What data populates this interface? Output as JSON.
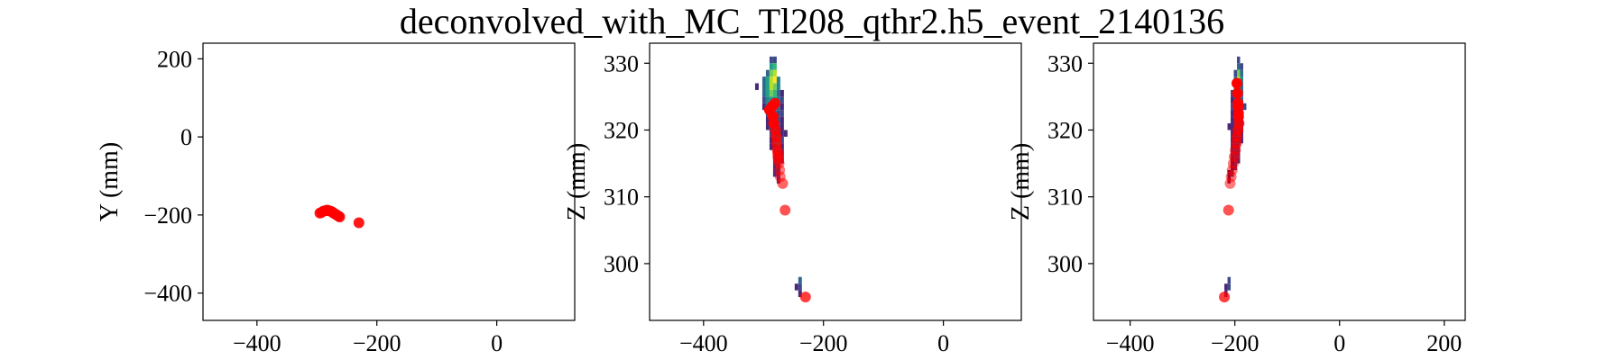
{
  "figure": {
    "title": "deconvolved_with_MC_Tl208_qthr2.h5_event_2140136"
  },
  "chart_data": [
    {
      "type": "scatter",
      "panel": "XY",
      "xlabel": "",
      "ylabel": "Y (mm)",
      "xlim": [
        -490,
        130
      ],
      "ylim": [
        -470,
        240
      ],
      "xticks": [
        -400,
        -200,
        0
      ],
      "yticks": [
        -400,
        -200,
        0,
        200
      ],
      "series": [
        {
          "color": "#ff0000",
          "x": [
            -295,
            -292,
            -289,
            -286,
            -284,
            -282,
            -280,
            -278,
            -276,
            -274,
            -272,
            -270,
            -268,
            -266,
            -264,
            -262,
            -230
          ],
          "y": [
            -195,
            -193,
            -190,
            -189,
            -188,
            -188,
            -189,
            -190,
            -191,
            -193,
            -195,
            -197,
            -199,
            -201,
            -203,
            -205,
            -220
          ]
        }
      ]
    },
    {
      "type": "heatmap",
      "panel": "XZ",
      "xlabel": "",
      "ylabel": "Z (mm)",
      "xlim": [
        -490,
        130
      ],
      "ylim": [
        291.5,
        333
      ],
      "xticks": [
        -400,
        -200,
        0
      ],
      "yticks": [
        300,
        310,
        320,
        330
      ],
      "cells": [
        {
          "x": -287,
          "z": 330.5,
          "v": 0.25
        },
        {
          "x": -281,
          "z": 330.5,
          "v": 0.2
        },
        {
          "x": -287,
          "z": 329.5,
          "v": 0.5
        },
        {
          "x": -281,
          "z": 329.5,
          "v": 0.7
        },
        {
          "x": -293,
          "z": 328.5,
          "v": 0.35
        },
        {
          "x": -287,
          "z": 328.5,
          "v": 0.75
        },
        {
          "x": -281,
          "z": 328.5,
          "v": 0.9
        },
        {
          "x": -299,
          "z": 327.5,
          "v": 0.3
        },
        {
          "x": -293,
          "z": 327.5,
          "v": 0.55
        },
        {
          "x": -287,
          "z": 327.5,
          "v": 0.85
        },
        {
          "x": -281,
          "z": 327.5,
          "v": 0.95
        },
        {
          "x": -275,
          "z": 327.5,
          "v": 0.4
        },
        {
          "x": -311,
          "z": 326.5,
          "v": 0.1
        },
        {
          "x": -299,
          "z": 326.5,
          "v": 0.35
        },
        {
          "x": -293,
          "z": 326.5,
          "v": 0.6
        },
        {
          "x": -287,
          "z": 326.5,
          "v": 0.9
        },
        {
          "x": -281,
          "z": 326.5,
          "v": 0.8
        },
        {
          "x": -275,
          "z": 326.5,
          "v": 0.45
        },
        {
          "x": -299,
          "z": 325.5,
          "v": 0.3
        },
        {
          "x": -293,
          "z": 325.5,
          "v": 0.5
        },
        {
          "x": -287,
          "z": 325.5,
          "v": 0.75
        },
        {
          "x": -281,
          "z": 325.5,
          "v": 0.65
        },
        {
          "x": -275,
          "z": 325.5,
          "v": 0.35
        },
        {
          "x": -269,
          "z": 325.5,
          "v": 0.15
        },
        {
          "x": -299,
          "z": 324.5,
          "v": 0.25
        },
        {
          "x": -293,
          "z": 324.5,
          "v": 0.4
        },
        {
          "x": -287,
          "z": 324.5,
          "v": 0.55
        },
        {
          "x": -281,
          "z": 324.5,
          "v": 0.5
        },
        {
          "x": -275,
          "z": 324.5,
          "v": 0.3
        },
        {
          "x": -269,
          "z": 324.5,
          "v": 0.2
        },
        {
          "x": -299,
          "z": 323.5,
          "v": 0.15
        },
        {
          "x": -293,
          "z": 323.5,
          "v": 0.35
        },
        {
          "x": -287,
          "z": 323.5,
          "v": 0.45
        },
        {
          "x": -281,
          "z": 323.5,
          "v": 0.4
        },
        {
          "x": -275,
          "z": 323.5,
          "v": 0.3
        },
        {
          "x": -269,
          "z": 323.5,
          "v": 0.15
        },
        {
          "x": -293,
          "z": 322.5,
          "v": 0.25
        },
        {
          "x": -287,
          "z": 322.5,
          "v": 0.4
        },
        {
          "x": -281,
          "z": 322.5,
          "v": 0.35
        },
        {
          "x": -275,
          "z": 322.5,
          "v": 0.25
        },
        {
          "x": -269,
          "z": 322.5,
          "v": 0.2
        },
        {
          "x": -293,
          "z": 321.5,
          "v": 0.15
        },
        {
          "x": -287,
          "z": 321.5,
          "v": 0.3
        },
        {
          "x": -281,
          "z": 321.5,
          "v": 0.35
        },
        {
          "x": -275,
          "z": 321.5,
          "v": 0.25
        },
        {
          "x": -269,
          "z": 321.5,
          "v": 0.1
        },
        {
          "x": -293,
          "z": 320.5,
          "v": 0.1
        },
        {
          "x": -287,
          "z": 320.5,
          "v": 0.25
        },
        {
          "x": -281,
          "z": 320.5,
          "v": 0.3
        },
        {
          "x": -275,
          "z": 320.5,
          "v": 0.2
        },
        {
          "x": -269,
          "z": 320.5,
          "v": 0.15
        },
        {
          "x": -287,
          "z": 319.5,
          "v": 0.2
        },
        {
          "x": -281,
          "z": 319.5,
          "v": 0.35
        },
        {
          "x": -275,
          "z": 319.5,
          "v": 0.25
        },
        {
          "x": -269,
          "z": 319.5,
          "v": 0.1
        },
        {
          "x": -263,
          "z": 319.5,
          "v": 0.15
        },
        {
          "x": -287,
          "z": 318.5,
          "v": 0.15
        },
        {
          "x": -281,
          "z": 318.5,
          "v": 0.3
        },
        {
          "x": -275,
          "z": 318.5,
          "v": 0.45
        },
        {
          "x": -269,
          "z": 318.5,
          "v": 0.2
        },
        {
          "x": -287,
          "z": 317.5,
          "v": 0.1
        },
        {
          "x": -281,
          "z": 317.5,
          "v": 0.25
        },
        {
          "x": -275,
          "z": 317.5,
          "v": 0.4
        },
        {
          "x": -269,
          "z": 317.5,
          "v": 0.15
        },
        {
          "x": -281,
          "z": 316.5,
          "v": 0.2
        },
        {
          "x": -275,
          "z": 316.5,
          "v": 0.3
        },
        {
          "x": -269,
          "z": 316.5,
          "v": 0.1
        },
        {
          "x": -281,
          "z": 315.5,
          "v": 0.15
        },
        {
          "x": -275,
          "z": 315.5,
          "v": 0.2
        },
        {
          "x": -269,
          "z": 315.5,
          "v": 0.1
        },
        {
          "x": -281,
          "z": 314.5,
          "v": 0.1
        },
        {
          "x": -275,
          "z": 314.5,
          "v": 0.15
        },
        {
          "x": -281,
          "z": 313.5,
          "v": 0.1
        },
        {
          "x": -275,
          "z": 313.5,
          "v": 0.1
        },
        {
          "x": -275,
          "z": 312.5,
          "v": 0.08
        },
        {
          "x": -239,
          "z": 297.5,
          "v": 0.3
        },
        {
          "x": -239,
          "z": 296.5,
          "v": 0.2
        },
        {
          "x": -245,
          "z": 296.5,
          "v": 0.15
        },
        {
          "x": -239,
          "z": 295.5,
          "v": 0.1
        }
      ],
      "points": {
        "color": "#ff0000",
        "x": [
          -290,
          -286,
          -284,
          -283,
          -281,
          -280,
          -279,
          -278,
          -277,
          -276,
          -276,
          -275,
          -274,
          -273,
          -272,
          -268,
          -264,
          -230
        ],
        "z": [
          323.0,
          323.5,
          322.0,
          321.0,
          324.0,
          320.0,
          319.0,
          318.0,
          317.0,
          316.5,
          316.0,
          315.5,
          315.0,
          314.0,
          313.0,
          312.0,
          308.0,
          295.0
        ],
        "size": [
          1,
          1,
          1,
          1,
          0.9,
          0.8,
          0.8,
          0.7,
          0.6,
          0.6,
          0.5,
          0.5,
          0.4,
          0.4,
          0.4,
          0.5,
          0.6,
          0.7
        ]
      }
    },
    {
      "type": "heatmap",
      "panel": "YZ",
      "xlabel": "",
      "ylabel": "Z (mm)",
      "xlim": [
        -470,
        240
      ],
      "ylim": [
        291.5,
        333
      ],
      "xticks": [
        -400,
        -200,
        0,
        200
      ],
      "yticks": [
        300,
        310,
        320,
        330
      ],
      "cells": [
        {
          "x": -193,
          "z": 330.5,
          "v": 0.25
        },
        {
          "x": -193,
          "z": 329.5,
          "v": 0.3
        },
        {
          "x": -187,
          "z": 329.5,
          "v": 0.2
        },
        {
          "x": -199,
          "z": 328.5,
          "v": 0.25
        },
        {
          "x": -193,
          "z": 328.5,
          "v": 0.75
        },
        {
          "x": -187,
          "z": 328.5,
          "v": 0.3
        },
        {
          "x": -199,
          "z": 327.5,
          "v": 0.3
        },
        {
          "x": -193,
          "z": 327.5,
          "v": 0.85
        },
        {
          "x": -187,
          "z": 327.5,
          "v": 0.45
        },
        {
          "x": -199,
          "z": 326.5,
          "v": 0.35
        },
        {
          "x": -193,
          "z": 326.5,
          "v": 0.7
        },
        {
          "x": -187,
          "z": 326.5,
          "v": 0.35
        },
        {
          "x": -205,
          "z": 325.5,
          "v": 0.2
        },
        {
          "x": -199,
          "z": 325.5,
          "v": 0.4
        },
        {
          "x": -193,
          "z": 325.5,
          "v": 0.55
        },
        {
          "x": -187,
          "z": 325.5,
          "v": 0.3
        },
        {
          "x": -205,
          "z": 324.5,
          "v": 0.15
        },
        {
          "x": -199,
          "z": 324.5,
          "v": 0.35
        },
        {
          "x": -193,
          "z": 324.5,
          "v": 0.45
        },
        {
          "x": -187,
          "z": 324.5,
          "v": 0.3
        },
        {
          "x": -205,
          "z": 323.5,
          "v": 0.2
        },
        {
          "x": -199,
          "z": 323.5,
          "v": 0.3
        },
        {
          "x": -193,
          "z": 323.5,
          "v": 0.35
        },
        {
          "x": -187,
          "z": 323.5,
          "v": 0.25
        },
        {
          "x": -181,
          "z": 323.5,
          "v": 0.2
        },
        {
          "x": -205,
          "z": 322.5,
          "v": 0.15
        },
        {
          "x": -199,
          "z": 322.5,
          "v": 0.25
        },
        {
          "x": -193,
          "z": 322.5,
          "v": 0.3
        },
        {
          "x": -187,
          "z": 322.5,
          "v": 0.2
        },
        {
          "x": -205,
          "z": 321.5,
          "v": 0.1
        },
        {
          "x": -199,
          "z": 321.5,
          "v": 0.2
        },
        {
          "x": -193,
          "z": 321.5,
          "v": 0.25
        },
        {
          "x": -187,
          "z": 321.5,
          "v": 0.15
        },
        {
          "x": -211,
          "z": 320.5,
          "v": 0.1
        },
        {
          "x": -205,
          "z": 320.5,
          "v": 0.15
        },
        {
          "x": -199,
          "z": 320.5,
          "v": 0.2
        },
        {
          "x": -193,
          "z": 320.5,
          "v": 0.2
        },
        {
          "x": -187,
          "z": 320.5,
          "v": 0.1
        },
        {
          "x": -205,
          "z": 319.5,
          "v": 0.1
        },
        {
          "x": -199,
          "z": 319.5,
          "v": 0.15
        },
        {
          "x": -193,
          "z": 319.5,
          "v": 0.2
        },
        {
          "x": -187,
          "z": 319.5,
          "v": 0.15
        },
        {
          "x": -205,
          "z": 318.5,
          "v": 0.08
        },
        {
          "x": -199,
          "z": 318.5,
          "v": 0.12
        },
        {
          "x": -193,
          "z": 318.5,
          "v": 0.15
        },
        {
          "x": -187,
          "z": 318.5,
          "v": 0.1
        },
        {
          "x": -205,
          "z": 317.5,
          "v": 0.08
        },
        {
          "x": -199,
          "z": 317.5,
          "v": 0.1
        },
        {
          "x": -193,
          "z": 317.5,
          "v": 0.12
        },
        {
          "x": -205,
          "z": 316.5,
          "v": 0.06
        },
        {
          "x": -199,
          "z": 316.5,
          "v": 0.1
        },
        {
          "x": -193,
          "z": 316.5,
          "v": 0.1
        },
        {
          "x": -205,
          "z": 315.5,
          "v": 0.05
        },
        {
          "x": -199,
          "z": 315.5,
          "v": 0.08
        },
        {
          "x": -193,
          "z": 315.5,
          "v": 0.08
        },
        {
          "x": -205,
          "z": 314.5,
          "v": 0.05
        },
        {
          "x": -199,
          "z": 314.5,
          "v": 0.06
        },
        {
          "x": -211,
          "z": 313.5,
          "v": 0.05
        },
        {
          "x": -205,
          "z": 313.5,
          "v": 0.06
        },
        {
          "x": -211,
          "z": 312.5,
          "v": 0.05
        },
        {
          "x": -211,
          "z": 297.5,
          "v": 0.2
        },
        {
          "x": -217,
          "z": 296.5,
          "v": 0.15
        },
        {
          "x": -211,
          "z": 296.5,
          "v": 0.2
        },
        {
          "x": -217,
          "z": 295.5,
          "v": 0.1
        }
      ],
      "points": {
        "color": "#ff0000",
        "x": [
          -196,
          -195,
          -194,
          -194,
          -193,
          -193,
          -192,
          -194,
          -196,
          -197,
          -199,
          -201,
          -203,
          -205,
          -207,
          -209,
          -212,
          -220
        ],
        "z": [
          327.0,
          325.5,
          324.0,
          323.5,
          322.5,
          322.0,
          321.0,
          320.0,
          319.0,
          318.0,
          317.0,
          316.0,
          315.0,
          314.0,
          313.0,
          312.0,
          308.0,
          295.0
        ],
        "size": [
          1,
          1,
          1,
          1,
          0.9,
          0.9,
          0.8,
          0.8,
          0.7,
          0.6,
          0.5,
          0.5,
          0.4,
          0.4,
          0.4,
          0.4,
          0.6,
          0.7
        ]
      }
    }
  ]
}
